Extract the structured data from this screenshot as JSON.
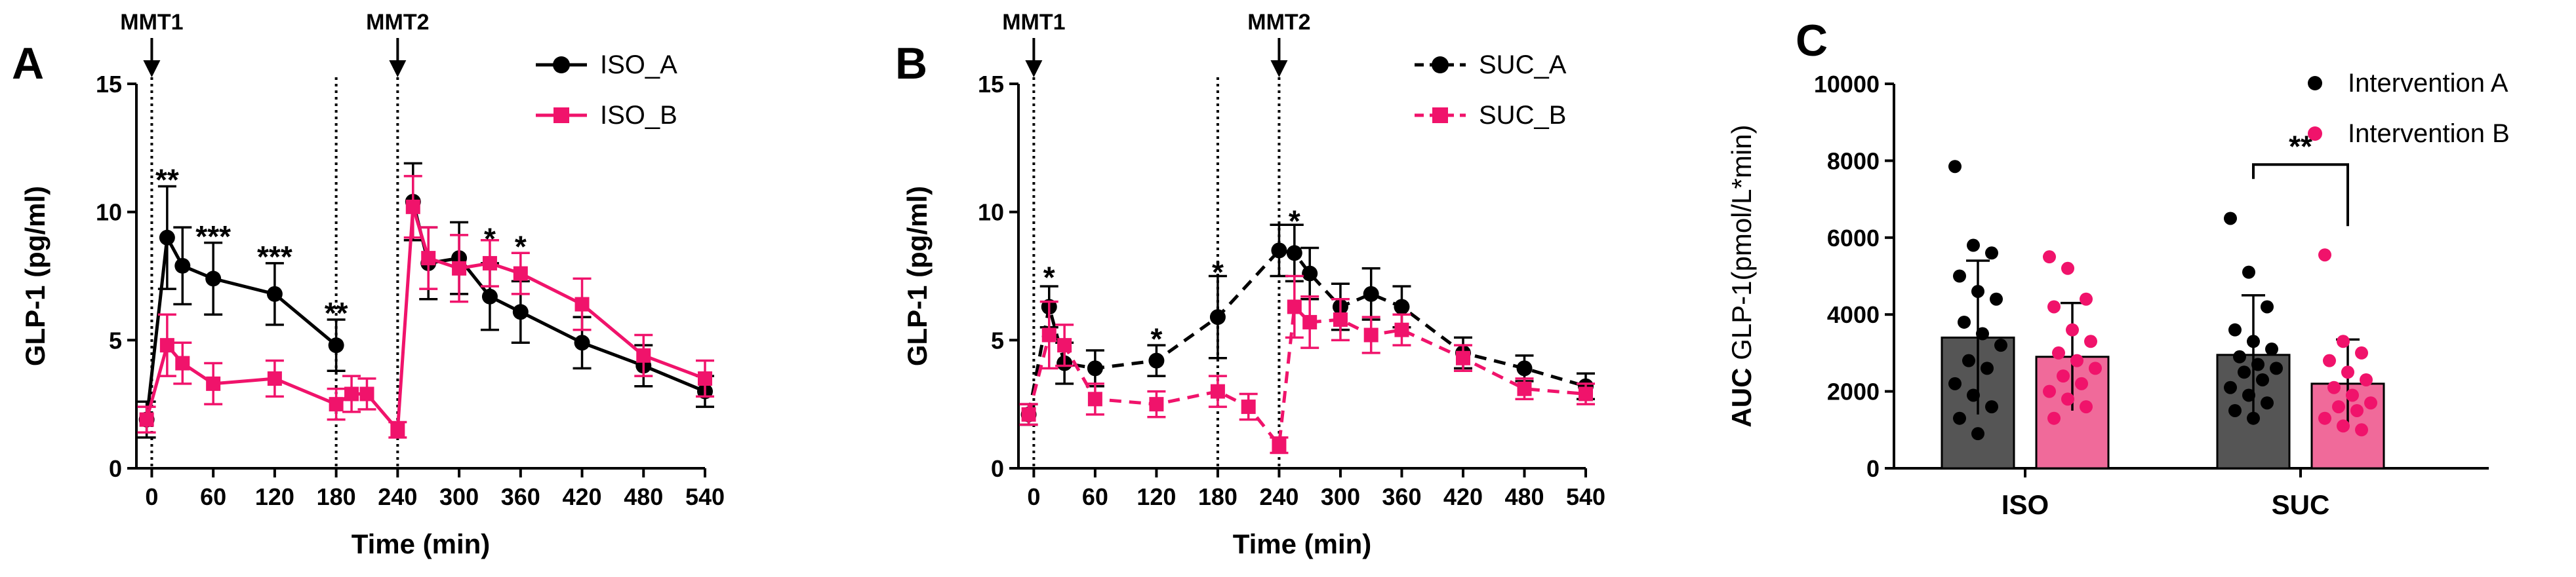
{
  "chart_data": [
    {
      "panel": "A",
      "type": "line",
      "xlabel": "Time (min)",
      "ylabel": "GLP-1 (pg/ml)",
      "xticks": [
        0,
        60,
        120,
        180,
        240,
        300,
        360,
        420,
        480,
        540
      ],
      "yticks": [
        0,
        5,
        10,
        15
      ],
      "xlim": [
        -15,
        540
      ],
      "ylim": [
        0,
        15
      ],
      "markers": [
        {
          "label": "MMT1",
          "x": 0
        },
        {
          "label": "MMT2",
          "x": 240
        }
      ],
      "vlines": [
        0,
        180,
        240
      ],
      "series": [
        {
          "name": "ISO_A",
          "color": "#000000",
          "marker": "circle",
          "dash": "solid",
          "segments": [
            [
              [
                -5,
                1.9
              ],
              [
                15,
                9.0
              ],
              [
                30,
                7.9
              ],
              [
                60,
                7.4
              ],
              [
                120,
                6.8
              ],
              [
                180,
                4.8
              ]
            ],
            [
              [
                255,
                10.4
              ],
              [
                270,
                8.0
              ],
              [
                300,
                8.2
              ],
              [
                330,
                6.7
              ],
              [
                360,
                6.1
              ],
              [
                420,
                4.9
              ],
              [
                480,
                4.0
              ],
              [
                540,
                3.0
              ]
            ]
          ],
          "errors": [
            [
              -5,
              0.7
            ],
            [
              15,
              2.0
            ],
            [
              30,
              1.5
            ],
            [
              60,
              1.4
            ],
            [
              120,
              1.2
            ],
            [
              180,
              1.0
            ],
            [
              255,
              1.5
            ],
            [
              270,
              1.4
            ],
            [
              300,
              1.4
            ],
            [
              330,
              1.3
            ],
            [
              360,
              1.2
            ],
            [
              420,
              1.0
            ],
            [
              480,
              0.8
            ],
            [
              540,
              0.6
            ]
          ]
        },
        {
          "name": "ISO_B",
          "color": "#f0136b",
          "marker": "square",
          "dash": "solid",
          "segments": [
            [
              [
                -5,
                1.9
              ],
              [
                15,
                4.8
              ],
              [
                30,
                4.1
              ],
              [
                60,
                3.3
              ],
              [
                120,
                3.5
              ],
              [
                180,
                2.5
              ],
              [
                195,
                2.9
              ],
              [
                210,
                2.9
              ],
              [
                240,
                1.5
              ],
              [
                255,
                10.2
              ],
              [
                270,
                8.2
              ],
              [
                300,
                7.8
              ],
              [
                330,
                8.0
              ],
              [
                360,
                7.6
              ],
              [
                420,
                6.4
              ],
              [
                480,
                4.4
              ],
              [
                540,
                3.5
              ]
            ]
          ],
          "errors": [
            [
              -5,
              0.5
            ],
            [
              15,
              1.2
            ],
            [
              30,
              0.8
            ],
            [
              60,
              0.8
            ],
            [
              120,
              0.7
            ],
            [
              180,
              0.6
            ],
            [
              195,
              0.7
            ],
            [
              210,
              0.6
            ],
            [
              240,
              0.3
            ],
            [
              255,
              1.2
            ],
            [
              270,
              1.2
            ],
            [
              300,
              1.3
            ],
            [
              330,
              0.9
            ],
            [
              360,
              0.8
            ],
            [
              420,
              1.0
            ],
            [
              480,
              0.8
            ],
            [
              540,
              0.7
            ]
          ]
        }
      ],
      "annotations": [
        {
          "text": "**",
          "x": 15,
          "y": 11.2
        },
        {
          "text": "***",
          "x": 60,
          "y": 9.0
        },
        {
          "text": "***",
          "x": 120,
          "y": 8.2
        },
        {
          "text": "**",
          "x": 180,
          "y": 6.0
        },
        {
          "text": "*",
          "x": 330,
          "y": 8.9
        },
        {
          "text": "*",
          "x": 360,
          "y": 8.6
        }
      ],
      "legend": "top-right"
    },
    {
      "panel": "B",
      "type": "line",
      "xlabel": "Time (min)",
      "ylabel": "GLP-1 (pg/ml)",
      "xticks": [
        0,
        60,
        120,
        180,
        240,
        300,
        360,
        420,
        480,
        540
      ],
      "yticks": [
        0,
        5,
        10,
        15
      ],
      "xlim": [
        -15,
        540
      ],
      "ylim": [
        0,
        15
      ],
      "markers": [
        {
          "label": "MMT1",
          "x": 0
        },
        {
          "label": "MMT2",
          "x": 240
        }
      ],
      "vlines": [
        0,
        180,
        240
      ],
      "series": [
        {
          "name": "SUC_A",
          "color": "#000000",
          "marker": "circle",
          "dash": "dashed",
          "segments": [
            [
              [
                -5,
                2.1
              ],
              [
                15,
                6.3
              ],
              [
                30,
                4.1
              ],
              [
                60,
                3.9
              ],
              [
                120,
                4.2
              ],
              [
                180,
                5.9
              ],
              [
                240,
                8.5
              ],
              [
                255,
                8.4
              ],
              [
                270,
                7.6
              ],
              [
                300,
                6.3
              ],
              [
                330,
                6.8
              ],
              [
                360,
                6.3
              ],
              [
                420,
                4.5
              ],
              [
                480,
                3.9
              ],
              [
                540,
                3.2
              ]
            ]
          ],
          "errors": [
            [
              -5,
              0.4
            ],
            [
              15,
              0.8
            ],
            [
              30,
              0.8
            ],
            [
              60,
              0.7
            ],
            [
              120,
              0.6
            ],
            [
              180,
              1.6
            ],
            [
              240,
              1.0
            ],
            [
              255,
              1.1
            ],
            [
              270,
              1.0
            ],
            [
              300,
              0.9
            ],
            [
              330,
              1.0
            ],
            [
              360,
              0.8
            ],
            [
              420,
              0.6
            ],
            [
              480,
              0.5
            ],
            [
              540,
              0.5
            ]
          ]
        },
        {
          "name": "SUC_B",
          "color": "#f0136b",
          "marker": "square",
          "dash": "dashed",
          "segments": [
            [
              [
                -5,
                2.1
              ],
              [
                15,
                5.2
              ],
              [
                30,
                4.8
              ],
              [
                60,
                2.7
              ],
              [
                120,
                2.5
              ],
              [
                180,
                3.0
              ],
              [
                210,
                2.4
              ],
              [
                240,
                0.9
              ],
              [
                255,
                6.3
              ],
              [
                270,
                5.7
              ],
              [
                300,
                5.8
              ],
              [
                330,
                5.2
              ],
              [
                360,
                5.4
              ],
              [
                420,
                4.3
              ],
              [
                480,
                3.1
              ],
              [
                540,
                2.9
              ]
            ]
          ],
          "errors": [
            [
              -5,
              0.4
            ],
            [
              15,
              1.3
            ],
            [
              30,
              0.8
            ],
            [
              60,
              0.6
            ],
            [
              120,
              0.5
            ],
            [
              180,
              0.6
            ],
            [
              210,
              0.5
            ],
            [
              240,
              0.3
            ],
            [
              255,
              1.2
            ],
            [
              270,
              1.0
            ],
            [
              300,
              0.8
            ],
            [
              330,
              0.7
            ],
            [
              360,
              0.6
            ],
            [
              420,
              0.5
            ],
            [
              480,
              0.4
            ],
            [
              540,
              0.4
            ]
          ]
        }
      ],
      "annotations": [
        {
          "text": "*",
          "x": 15,
          "y": 7.4
        },
        {
          "text": "*",
          "x": 120,
          "y": 5.0
        },
        {
          "text": "*",
          "x": 180,
          "y": 7.6
        },
        {
          "text": "*",
          "x": 255,
          "y": 9.6
        }
      ],
      "legend": "top-right"
    },
    {
      "panel": "C",
      "type": "bar",
      "ylabel_main": "AUC",
      "ylabel_sub": "GLP-1(pmol/L*min)",
      "categories": [
        "ISO",
        "SUC"
      ],
      "yticks": [
        0,
        2000,
        4000,
        6000,
        8000,
        10000
      ],
      "ylim": [
        0,
        10000
      ],
      "series": [
        {
          "name": "Intervention A",
          "color": "#555555",
          "dot_color": "#000000",
          "values": [
            3400,
            2950
          ],
          "sd": [
            2000,
            1550
          ],
          "points": [
            [
              7850,
              5800,
              5600,
              5000,
              4600,
              4400,
              3800,
              3500,
              3200,
              2800,
              2600,
              2200,
              1900,
              1600,
              1300,
              900
            ],
            [
              6500,
              5100,
              4200,
              3600,
              3300,
              3100,
              2900,
              2700,
              2600,
              2500,
              2300,
              2100,
              1900,
              1700,
              1500,
              1300
            ]
          ]
        },
        {
          "name": "Intervention B",
          "color": "#f06a9a",
          "dot_color": "#f0136b",
          "values": [
            2900,
            2200
          ],
          "sd": [
            1400,
            1150
          ],
          "points": [
            [
              5500,
              5200,
              4400,
              4200,
              3600,
              3300,
              3000,
              2800,
              2600,
              2400,
              2200,
              2000,
              1800,
              1600,
              1300
            ],
            [
              5550,
              3300,
              3000,
              2800,
              2500,
              2300,
              2100,
              1900,
              1700,
              1600,
              1500,
              1300,
              1100,
              1000
            ]
          ]
        }
      ],
      "annotations": [
        {
          "text": "**",
          "between": [
            "SUC Intervention A",
            "SUC Intervention B"
          ]
        }
      ],
      "legend": "top-right"
    }
  ]
}
